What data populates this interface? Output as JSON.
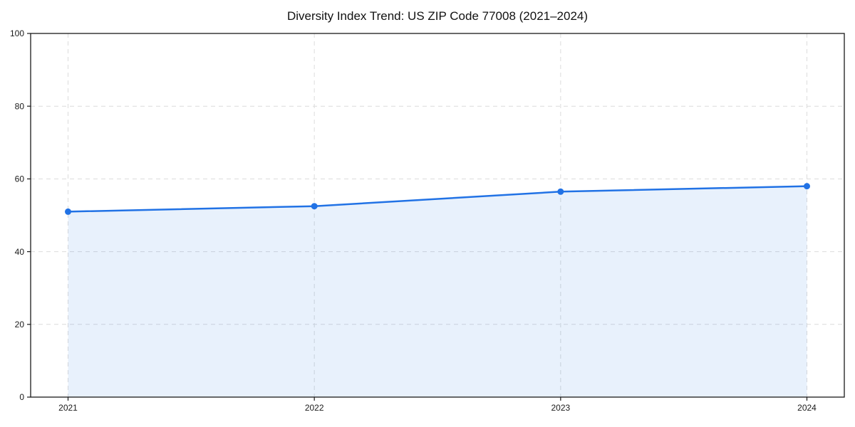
{
  "chart_data": {
    "type": "area",
    "title": "Diversity Index Trend: US ZIP Code 77008 (2021–2024)",
    "x": [
      "2021",
      "2022",
      "2023",
      "2024"
    ],
    "series": [
      {
        "name": "Diversity Index",
        "values": [
          51,
          52.5,
          56.5,
          58
        ]
      }
    ],
    "xlabel": "",
    "ylabel": "",
    "ylim": [
      0,
      100
    ],
    "yticks": [
      0,
      20,
      40,
      60,
      80,
      100
    ],
    "grid": true,
    "grid_style": "dashed",
    "legend": false,
    "colors": {
      "line": "#2172e5",
      "marker": "#2172e5",
      "fill": "#2172e5",
      "fill_opacity": 0.1,
      "grid": "#dcdcdc",
      "axis": "#1a1a1a",
      "tick_label": "#1a1a1a",
      "title": "#111111",
      "background": "#ffffff"
    }
  }
}
